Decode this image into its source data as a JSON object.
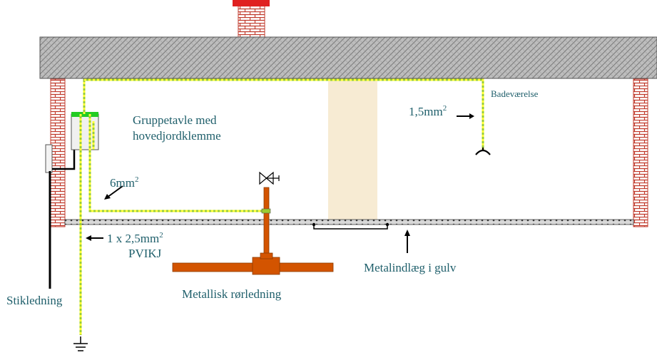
{
  "labels": {
    "gruppetavle_line1": "Gruppetavle med",
    "gruppetavle_line2": "hovedjordklemme",
    "badevaerelse": "Badeværelse",
    "wire_15_base": "1,5mm",
    "wire_15_exp": "2",
    "wire_6_base": "6mm",
    "wire_6_exp": "2",
    "pvikj_line1_base": "1 x 2,5mm",
    "pvikj_line1_exp": "2",
    "pvikj_line2": "PVIKJ",
    "stikledning": "Stikledning",
    "metallisk_rorledning": "Metallisk rørledning",
    "metalindlaeg": "Metalindlæg i gulv"
  },
  "colors": {
    "label_text": "#1f5f6b",
    "earth_wire": "#9acd32",
    "brick": "#c0392b",
    "chimney_cap": "#e02020",
    "pipe": "#d35400",
    "column": "#f7ebd3",
    "panel_top": "#22cc22"
  }
}
